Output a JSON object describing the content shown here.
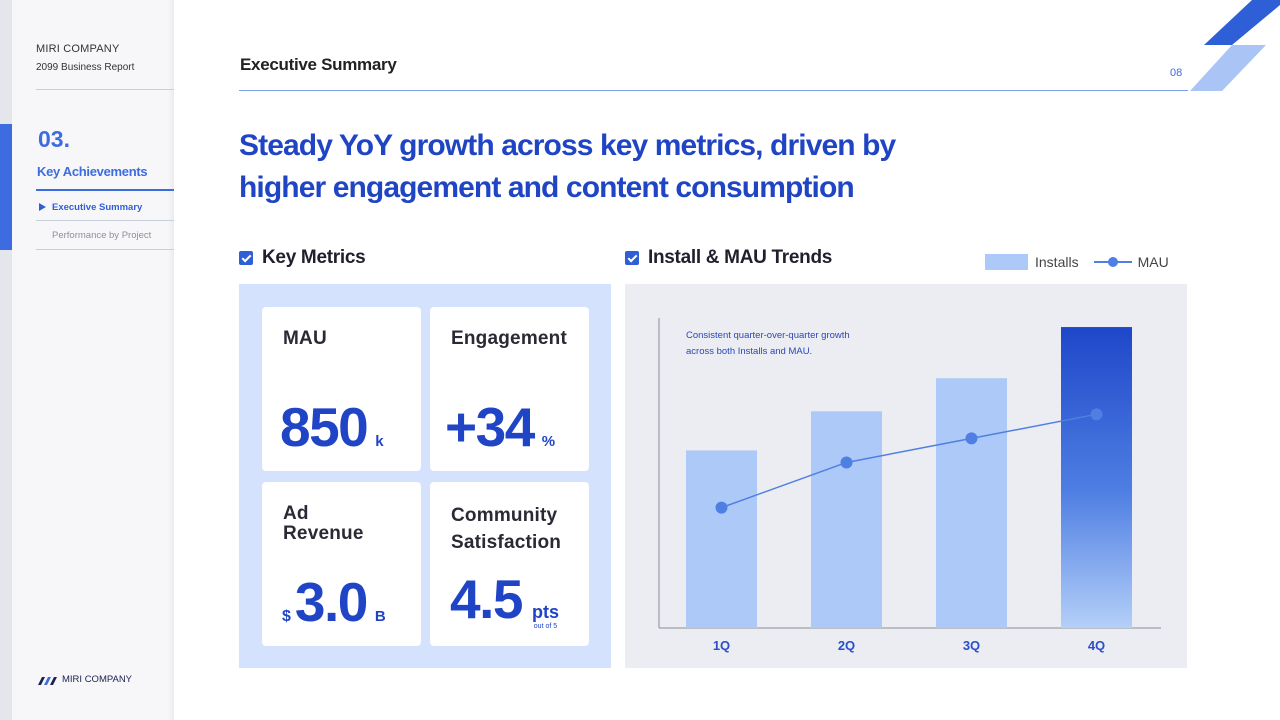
{
  "sidebar": {
    "brand": "MIRI COMPANY",
    "report": "2099 Business Report",
    "section_number": "03.",
    "section_title": "Key Achievements",
    "nav": [
      {
        "label": "Executive Summary",
        "active": true
      },
      {
        "label": "Performance by Project",
        "active": false
      }
    ],
    "footer_brand": "MIRI COMPANY"
  },
  "header": {
    "title": "Executive Summary",
    "page_number": "08"
  },
  "headline": {
    "line1": "Steady YoY growth across key metrics, driven by",
    "line2": "higher engagement and content consumption"
  },
  "key_metrics": {
    "label": "Key Metrics",
    "cards": [
      {
        "label": "MAU",
        "value": "850",
        "unit": "k"
      },
      {
        "label": "Engagement",
        "value": "+34",
        "unit": "%"
      },
      {
        "label_line1": "Ad",
        "label_line2": "Revenue",
        "prefix": "$",
        "value": "3.0",
        "unit": "B"
      },
      {
        "label_line1": "Community",
        "label_line2": "Satisfaction",
        "value": "4.5",
        "unit": "pts",
        "unit_sub": "out of 5"
      }
    ]
  },
  "trends": {
    "label": "Install & MAU Trends",
    "legend": {
      "installs": "Installs",
      "mau": "MAU"
    }
  },
  "colors": {
    "accent": "#2f5fd6",
    "headline": "#2045c4",
    "bar": "#adc9f7",
    "bar_highlight": "#1e47c9",
    "line": "#4f7fe3"
  },
  "chart_data": {
    "type": "bar",
    "annotation_line1": "Consistent quarter-over-quarter growth",
    "annotation_line2": "across both Installs and MAU.",
    "categories": [
      "1Q",
      "2Q",
      "3Q",
      "4Q"
    ],
    "series": [
      {
        "name": "Installs",
        "kind": "bar",
        "values": [
          59,
          72,
          83,
          100
        ]
      },
      {
        "name": "MAU",
        "kind": "line",
        "values": [
          40,
          55,
          63,
          71
        ]
      }
    ],
    "ylim": [
      0,
      105
    ],
    "grid": false,
    "legend": "top-right",
    "xlabel": "",
    "ylabel": ""
  }
}
